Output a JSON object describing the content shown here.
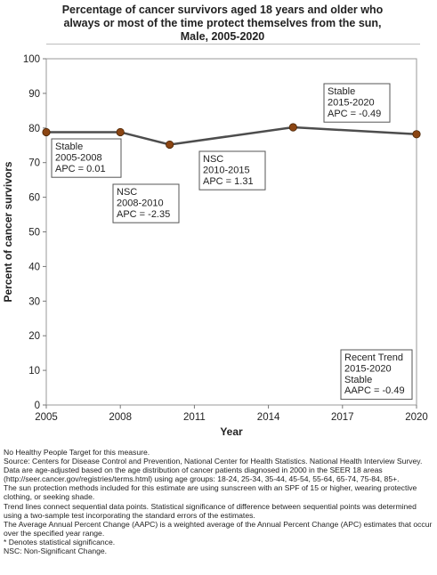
{
  "title": {
    "lines": [
      "Percentage of cancer survivors aged 18 years and older who",
      "always or most of the time protect themselves from the sun,",
      "Male,  2005-2020"
    ]
  },
  "chart_data": {
    "type": "line",
    "xlabel": "Year",
    "ylabel": "Percent of cancer survivors",
    "xlim": [
      2005,
      2020
    ],
    "ylim": [
      0,
      100
    ],
    "x_ticks": [
      2005,
      2008,
      2011,
      2014,
      2017,
      2020
    ],
    "x_tick_labels": [
      "2005",
      "2008",
      "2011",
      "2014",
      "2017",
      "2020"
    ],
    "y_ticks": [
      0,
      10,
      20,
      30,
      40,
      50,
      60,
      70,
      80,
      90,
      100
    ],
    "y_tick_labels": [
      "0",
      "10",
      "20",
      "30",
      "40",
      "50",
      "60",
      "70",
      "80",
      "90",
      "100"
    ],
    "grid": false,
    "series": [
      {
        "x": [
          2005,
          2008,
          2010,
          2015,
          2020
        ],
        "y": [
          78.8,
          78.8,
          75.2,
          80.2,
          78.2
        ],
        "color": "#4d4d4d",
        "marker_color": "#8b4513"
      }
    ],
    "annotations": [
      {
        "lines": [
          "Stable",
          "2005-2008",
          "APC =  0.01"
        ],
        "box": true
      },
      {
        "lines": [
          "NSC",
          "2008-2010",
          "APC = -2.35"
        ],
        "box": true
      },
      {
        "lines": [
          "NSC",
          "2010-2015",
          "APC =  1.31"
        ],
        "box": true
      },
      {
        "lines": [
          "Stable",
          "2015-2020",
          "APC = -0.49"
        ],
        "box": true
      },
      {
        "lines": [
          "Recent Trend",
          "2015-2020",
          "Stable",
          "AAPC = -0.49"
        ],
        "box": true
      }
    ]
  },
  "notes": [
    "No Healthy People Target for this measure.",
    "Source: Centers for Disease Control and Prevention, National Center for Health Statistics. National Health Interview Survey.",
    "Data are age-adjusted based on the age distribution of cancer patients diagnosed in 2000 in the SEER 18 areas (http://seer.cancer.gov/registries/terms.html) using age groups: 18-24, 25-34, 35-44, 45-54, 55-64, 65-74, 75-84, 85+.",
    "The sun protection methods included for this estimate are using sunscreen with an SPF of 15 or higher, wearing protective clothing, or seeking shade.",
    "Trend lines connect sequential data points. Statistical significance of difference between sequential points was determined using a two-sample test incorporating the standard errors of the estimates.",
    "The Average Annual Percent Change (AAPC) is a weighted average of the Annual Percent Change (APC) estimates that occur over the specified year range.",
    "* Denotes statistical significance.",
    "NSC: Non-Significant Change."
  ]
}
